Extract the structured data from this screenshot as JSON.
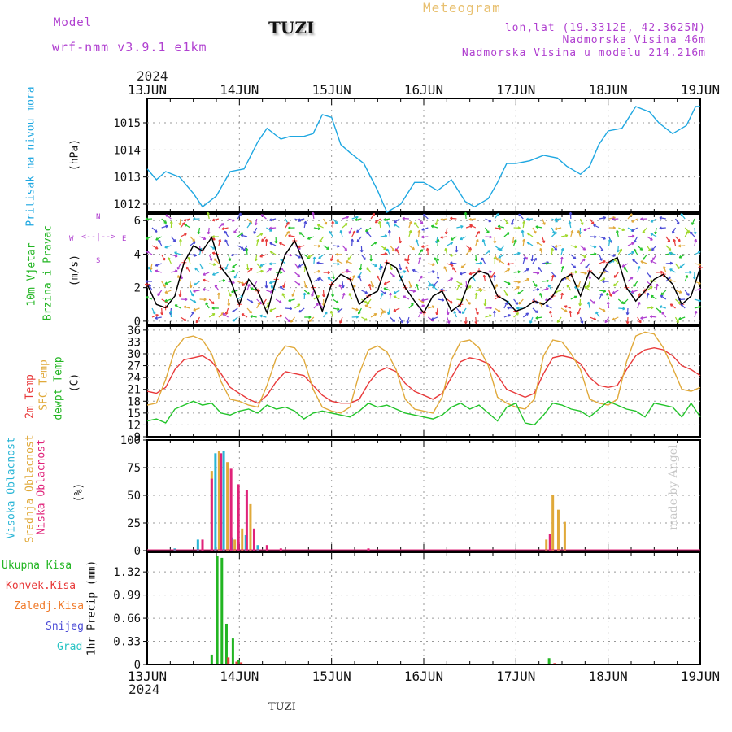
{
  "header": {
    "model_label": "Model",
    "model_name": "wrf-nmm_v3.9.1 e1km",
    "station": "TUZI",
    "title": "Meteogram",
    "lonlat": "lon,lat (19.3312E, 42.3625N)",
    "elevation": "Nadmorska Visina 46m",
    "model_elevation": "Nadmorska Visina u modelu 214.216m",
    "year_top": "2024",
    "year_bottom": "2024",
    "footer_station": "TUZI",
    "credit": "made by Angel"
  },
  "colors": {
    "pressure": "#1ea7e1",
    "wind_black": "#000000",
    "wind_red": "#ff3b3b",
    "temp2m": "#e8393a",
    "sfc": "#e0a93a",
    "dew": "#22c42a",
    "cloud_high": "#29b5d6",
    "cloud_mid": "#e0a93a",
    "cloud_low": "#e0237a",
    "precip_total": "#22b522",
    "precip_conv": "#e83a3a",
    "precip_frz": "#f07a2a",
    "precip_snow": "#4a4ad6",
    "precip_grad": "#29c4c4",
    "purple": "#b040d0"
  },
  "chart_data": {
    "type": "line",
    "x_ticks": [
      "13JUN",
      "14JUN",
      "15JUN",
      "16JUN",
      "17JUN",
      "18JUN",
      "19JUN"
    ],
    "x_range_days": [
      13,
      19
    ],
    "panels": [
      {
        "id": "pressure",
        "type": "line",
        "label_left": "Pritisak na nivou mora",
        "unit": "(hPa)",
        "y_ticks": [
          "1012",
          "1013",
          "1014",
          "1015"
        ],
        "ylim": [
          1011.7,
          1015.9
        ],
        "series": [
          {
            "name": "",
            "x": [
              13.0,
              13.1,
              13.2,
              13.35,
              13.5,
              13.6,
              13.75,
              13.9,
              14.05,
              14.2,
              14.3,
              14.45,
              14.55,
              14.7,
              14.8,
              14.9,
              15.0,
              15.1,
              15.2,
              15.35,
              15.5,
              15.6,
              15.75,
              15.9,
              16.0,
              16.15,
              16.3,
              16.45,
              16.55,
              16.7,
              16.8,
              16.9,
              17.0,
              17.15,
              17.3,
              17.45,
              17.55,
              17.7,
              17.8,
              17.9,
              18.0,
              18.15,
              18.3,
              18.45,
              18.55,
              18.7,
              18.85,
              18.95,
              19.0
            ],
            "y": [
              1013.3,
              1012.9,
              1013.2,
              1013.0,
              1012.4,
              1011.9,
              1012.3,
              1013.2,
              1013.3,
              1014.3,
              1014.8,
              1014.4,
              1014.5,
              1014.5,
              1014.6,
              1015.3,
              1015.2,
              1014.2,
              1013.9,
              1013.5,
              1012.5,
              1011.7,
              1012.0,
              1012.8,
              1012.8,
              1012.5,
              1012.9,
              1012.1,
              1011.9,
              1012.2,
              1012.8,
              1013.5,
              1013.5,
              1013.6,
              1013.8,
              1013.7,
              1013.4,
              1013.1,
              1013.4,
              1014.2,
              1014.7,
              1014.8,
              1015.6,
              1015.4,
              1015.0,
              1014.6,
              1014.9,
              1015.6,
              1015.6
            ]
          }
        ]
      },
      {
        "id": "wind",
        "type": "line",
        "label_left": "10m Vjetar",
        "label_left2": "Brzina i Pravac",
        "unit": "(m/s)",
        "compass": {
          "n": "N",
          "w": "W",
          "e": "E",
          "s": "S"
        },
        "y_ticks": [
          "0",
          "2",
          "4",
          "6"
        ],
        "ylim": [
          -0.2,
          6.4
        ],
        "series": [
          {
            "name": "",
            "x": [
              13.0,
              13.1,
              13.2,
              13.3,
              13.4,
              13.5,
              13.6,
              13.7,
              13.8,
              13.9,
              14.0,
              14.1,
              14.2,
              14.3,
              14.4,
              14.5,
              14.6,
              14.7,
              14.8,
              14.9,
              15.0,
              15.1,
              15.2,
              15.3,
              15.4,
              15.5,
              15.6,
              15.7,
              15.8,
              15.9,
              16.0,
              16.1,
              16.2,
              16.3,
              16.4,
              16.5,
              16.6,
              16.7,
              16.8,
              16.9,
              17.0,
              17.1,
              17.2,
              17.3,
              17.4,
              17.5,
              17.6,
              17.7,
              17.8,
              17.9,
              18.0,
              18.1,
              18.2,
              18.3,
              18.4,
              18.5,
              18.6,
              18.7,
              18.8,
              18.9,
              19.0
            ],
            "y": [
              2.2,
              1.0,
              0.8,
              1.5,
              3.5,
              4.5,
              4.2,
              5.0,
              3.2,
              2.5,
              1.0,
              2.5,
              1.8,
              0.5,
              2.5,
              4.0,
              4.8,
              3.5,
              2.0,
              0.6,
              2.2,
              2.8,
              2.5,
              1.0,
              1.5,
              1.8,
              3.5,
              3.2,
              2.0,
              1.2,
              0.5,
              1.5,
              1.8,
              0.6,
              1.0,
              2.5,
              3.0,
              2.8,
              1.5,
              1.2,
              0.6,
              0.8,
              1.2,
              1.0,
              1.5,
              2.5,
              2.8,
              1.5,
              3.0,
              2.5,
              3.5,
              3.8,
              2.0,
              1.2,
              1.8,
              2.5,
              2.8,
              2.2,
              1.0,
              1.5,
              3.2
            ]
          }
        ]
      },
      {
        "id": "temperature",
        "type": "line",
        "label_left": "2m Temp",
        "label_left2": "SFC Temp",
        "label_left3": "dewpt Temp",
        "unit": "(C)",
        "y_ticks": [
          "9",
          "12",
          "15",
          "18",
          "21",
          "24",
          "27",
          "30",
          "33",
          "36"
        ],
        "ylim": [
          9,
          37
        ],
        "series": [
          {
            "name": "",
            "x": [
              13.0,
              13.1,
              13.2,
              13.3,
              13.4,
              13.5,
              13.6,
              13.7,
              13.8,
              13.9,
              14.0,
              14.1,
              14.2,
              14.3,
              14.4,
              14.5,
              14.6,
              14.7,
              14.8,
              14.9,
              15.0,
              15.1,
              15.2,
              15.3,
              15.4,
              15.5,
              15.6,
              15.7,
              15.8,
              15.9,
              16.0,
              16.1,
              16.2,
              16.3,
              16.4,
              16.5,
              16.6,
              16.7,
              16.8,
              16.9,
              17.0,
              17.1,
              17.2,
              17.3,
              17.4,
              17.5,
              17.6,
              17.7,
              17.8,
              17.9,
              18.0,
              18.1,
              18.2,
              18.3,
              18.4,
              18.5,
              18.6,
              18.7,
              18.8,
              18.9,
              19.0
            ],
            "y": [
              20.5,
              20.0,
              21.5,
              26.0,
              28.5,
              29.0,
              29.5,
              28.0,
              25.0,
              21.5,
              20.0,
              18.5,
              17.5,
              19.5,
              23.0,
              25.5,
              25.0,
              24.5,
              22.0,
              19.5,
              18.0,
              17.5,
              17.5,
              18.5,
              22.5,
              25.5,
              26.5,
              25.5,
              22.5,
              20.5,
              19.5,
              18.5,
              20.0,
              24.0,
              28.0,
              29.0,
              28.5,
              27.5,
              24.5,
              21.0,
              20.0,
              19.0,
              20.0,
              25.0,
              29.0,
              29.5,
              29.0,
              27.5,
              24.0,
              22.0,
              21.5,
              22.0,
              26.0,
              29.5,
              31.0,
              31.5,
              31.0,
              29.5,
              27.0,
              26.0,
              24.5
            ]
          },
          {
            "name": "",
            "x": [
              13.0,
              13.1,
              13.2,
              13.3,
              13.4,
              13.5,
              13.6,
              13.7,
              13.8,
              13.9,
              14.0,
              14.1,
              14.2,
              14.3,
              14.4,
              14.5,
              14.6,
              14.7,
              14.8,
              14.9,
              15.0,
              15.1,
              15.2,
              15.3,
              15.4,
              15.5,
              15.6,
              15.7,
              15.8,
              15.9,
              16.0,
              16.1,
              16.2,
              16.3,
              16.4,
              16.5,
              16.6,
              16.7,
              16.8,
              16.9,
              17.0,
              17.1,
              17.2,
              17.3,
              17.4,
              17.5,
              17.6,
              17.7,
              17.8,
              17.9,
              18.0,
              18.1,
              18.2,
              18.3,
              18.4,
              18.5,
              18.6,
              18.7,
              18.8,
              18.9,
              19.0
            ],
            "y": [
              17.0,
              17.5,
              23.5,
              31.0,
              34.0,
              34.5,
              33.5,
              30.0,
              23.0,
              18.5,
              18.0,
              17.0,
              16.5,
              22.0,
              29.0,
              32.0,
              31.5,
              28.5,
              21.0,
              16.5,
              15.5,
              15.0,
              16.5,
              25.0,
              31.0,
              32.0,
              30.5,
              26.0,
              18.5,
              16.0,
              15.5,
              15.0,
              19.0,
              28.5,
              33.0,
              33.5,
              31.5,
              27.0,
              19.0,
              17.5,
              16.5,
              16.0,
              18.5,
              29.5,
              33.5,
              33.0,
              30.0,
              26.0,
              18.5,
              17.5,
              17.0,
              18.5,
              28.0,
              34.5,
              35.5,
              35.0,
              31.5,
              26.5,
              21.0,
              20.5,
              21.5
            ]
          },
          {
            "name": "",
            "x": [
              13.0,
              13.1,
              13.2,
              13.3,
              13.4,
              13.5,
              13.6,
              13.7,
              13.8,
              13.9,
              14.0,
              14.1,
              14.2,
              14.3,
              14.4,
              14.5,
              14.6,
              14.7,
              14.8,
              14.9,
              15.0,
              15.1,
              15.2,
              15.3,
              15.4,
              15.5,
              15.6,
              15.7,
              15.8,
              15.9,
              16.0,
              16.1,
              16.2,
              16.3,
              16.4,
              16.5,
              16.6,
              16.7,
              16.8,
              16.9,
              17.0,
              17.1,
              17.2,
              17.3,
              17.4,
              17.5,
              17.6,
              17.7,
              17.8,
              17.9,
              18.0,
              18.1,
              18.2,
              18.3,
              18.4,
              18.5,
              18.6,
              18.7,
              18.8,
              18.9,
              19.0
            ],
            "y": [
              13.0,
              13.5,
              12.5,
              16.0,
              17.0,
              18.0,
              17.0,
              17.5,
              15.0,
              14.5,
              15.5,
              16.0,
              15.0,
              17.0,
              16.0,
              16.5,
              15.5,
              13.5,
              15.0,
              15.5,
              15.0,
              14.5,
              14.0,
              15.5,
              17.5,
              16.5,
              17.0,
              16.0,
              15.0,
              14.5,
              14.0,
              13.5,
              14.5,
              16.5,
              17.5,
              16.0,
              17.0,
              15.0,
              13.0,
              16.5,
              17.5,
              12.5,
              12.0,
              14.5,
              17.5,
              17.0,
              16.0,
              15.5,
              14.0,
              16.0,
              18.0,
              17.0,
              16.0,
              15.5,
              14.0,
              17.5,
              17.0,
              16.5,
              14.0,
              17.5,
              14.0
            ]
          }
        ]
      },
      {
        "id": "clouds",
        "type": "bar",
        "label_left": "Visoka Oblacnost",
        "label_left2": "Srednja Oblacnost",
        "label_left3": "Niska Oblacnost",
        "unit": "(%)",
        "y_ticks": [
          "0",
          "25",
          "50",
          "75",
          "100"
        ],
        "ylim": [
          0,
          100
        ],
        "series": [
          {
            "name": "",
            "x": [
              13.3,
              13.55,
              13.74,
              13.83,
              13.92,
              14.07,
              14.2
            ],
            "values": [
              2,
              10,
              88,
              90,
              12,
              14,
              5
            ]
          },
          {
            "name": "",
            "x": [
              13.7,
              13.78,
              13.87,
              13.95,
              14.03,
              14.12,
              17.33,
              17.4,
              17.46,
              17.53
            ],
            "values": [
              72,
              90,
              80,
              10,
              20,
              42,
              10,
              50,
              37,
              26
            ]
          },
          {
            "name": "",
            "x": [
              13.6,
              13.7,
              13.8,
              13.91,
              13.99,
              14.08,
              14.16,
              14.3,
              14.45,
              15.4,
              17.37
            ],
            "values": [
              10,
              65,
              88,
              74,
              60,
              55,
              20,
              5,
              2,
              2,
              15
            ]
          }
        ]
      },
      {
        "id": "precip",
        "type": "bar",
        "label_left": "1hr Precip (mm)",
        "legend": [
          "Ukupna Kisa",
          "Konvek.Kisa",
          "Zaledj.Kisa",
          "Snijeg",
          "Grad"
        ],
        "y_ticks": [
          "0",
          "0.33",
          "0.66",
          "0.99",
          "1.32"
        ],
        "ylim": [
          0,
          1.6
        ],
        "series": [
          {
            "name": "Ukupna Kisa",
            "x": [
              13.7,
              13.76,
              13.81,
              13.86,
              13.93,
              13.99,
              17.36
            ],
            "values": [
              0.14,
              1.55,
              1.52,
              0.58,
              0.37,
              0.06,
              0.09
            ]
          },
          {
            "name": "Konvek.Kisa",
            "x": [
              13.88,
              13.97,
              14.02,
              17.42,
              17.5
            ],
            "values": [
              0.1,
              0.04,
              0.03,
              0.02,
              0.01
            ]
          }
        ]
      }
    ]
  }
}
